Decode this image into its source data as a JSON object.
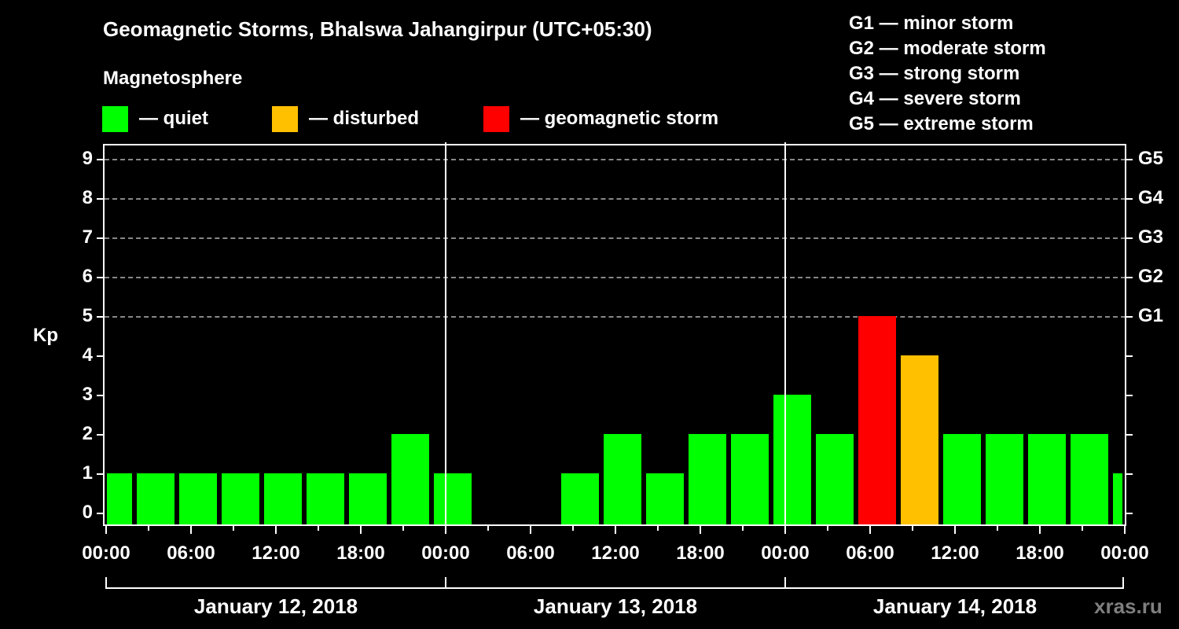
{
  "header": {
    "title": "Geomagnetic Storms, Bhalswa Jahangirpur (UTC+05:30)",
    "subtitle": "Magnetosphere"
  },
  "legend": [
    {
      "label": "— quiet",
      "color": "#00ff00"
    },
    {
      "label": "— disturbed",
      "color": "#ffc000"
    },
    {
      "label": "— geomagnetic storm",
      "color": "#ff0000"
    }
  ],
  "gscale": [
    "G1 — minor storm",
    "G2 — moderate storm",
    "G3 — strong storm",
    "G4 — severe storm",
    "G5 — extreme storm"
  ],
  "axis": {
    "ylabel": "Kp",
    "yticks": [
      "0",
      "1",
      "2",
      "3",
      "4",
      "5",
      "6",
      "7",
      "8",
      "9"
    ],
    "gticks": [
      "G1",
      "G2",
      "G3",
      "G4",
      "G5"
    ],
    "xticks": [
      "00:00",
      "06:00",
      "12:00",
      "18:00",
      "00:00",
      "06:00",
      "12:00",
      "18:00",
      "00:00",
      "06:00",
      "12:00",
      "18:00",
      "00:00"
    ],
    "days": [
      "January 12, 2018",
      "January 13, 2018",
      "January 14, 2018"
    ]
  },
  "brand": "xras.ru",
  "chart_data": {
    "type": "bar",
    "title": "Geomagnetic Storms, Bhalswa Jahangirpur (UTC+05:30)",
    "xlabel": "",
    "ylabel": "Kp",
    "ylim": [
      0,
      9
    ],
    "grid": true,
    "legend_position": "top",
    "legend": [
      "quiet",
      "disturbed",
      "geomagnetic storm"
    ],
    "right_axis": {
      "G1": 5,
      "G2": 6,
      "G3": 7,
      "G4": 8,
      "G5": 9
    },
    "categories": [
      "Jan 12 00:00-01:30",
      "Jan 12 01:30-04:30",
      "Jan 12 04:30-07:30",
      "Jan 12 07:30-10:30",
      "Jan 12 10:30-13:30",
      "Jan 12 13:30-16:30",
      "Jan 12 16:30-19:30",
      "Jan 12 19:30-22:30",
      "Jan 12 22:30-Jan 13 01:30",
      "Jan 13 01:30-04:30",
      "Jan 13 04:30-07:30",
      "Jan 13 07:30-10:30",
      "Jan 13 10:30-13:30",
      "Jan 13 13:30-16:30",
      "Jan 13 16:30-19:30",
      "Jan 13 19:30-22:30",
      "Jan 13 22:30-Jan 14 01:30",
      "Jan 14 01:30-04:30",
      "Jan 14 04:30-07:30",
      "Jan 14 07:30-10:30",
      "Jan 14 10:30-13:30",
      "Jan 14 13:30-16:30",
      "Jan 14 16:30-19:30",
      "Jan 14 19:30-22:30",
      "Jan 14 22:30-24:00"
    ],
    "values": [
      1,
      1,
      1,
      1,
      1,
      1,
      1,
      2,
      1,
      null,
      null,
      1,
      2,
      1,
      2,
      2,
      3,
      2,
      5,
      4,
      2,
      2,
      2,
      2,
      1
    ],
    "status": [
      "quiet",
      "quiet",
      "quiet",
      "quiet",
      "quiet",
      "quiet",
      "quiet",
      "quiet",
      "quiet",
      null,
      null,
      "quiet",
      "quiet",
      "quiet",
      "quiet",
      "quiet",
      "quiet",
      "quiet",
      "storm",
      "disturbed",
      "quiet",
      "quiet",
      "quiet",
      "quiet",
      "quiet"
    ],
    "colors": {
      "quiet": "#00ff00",
      "disturbed": "#ffc000",
      "storm": "#ff0000"
    }
  }
}
